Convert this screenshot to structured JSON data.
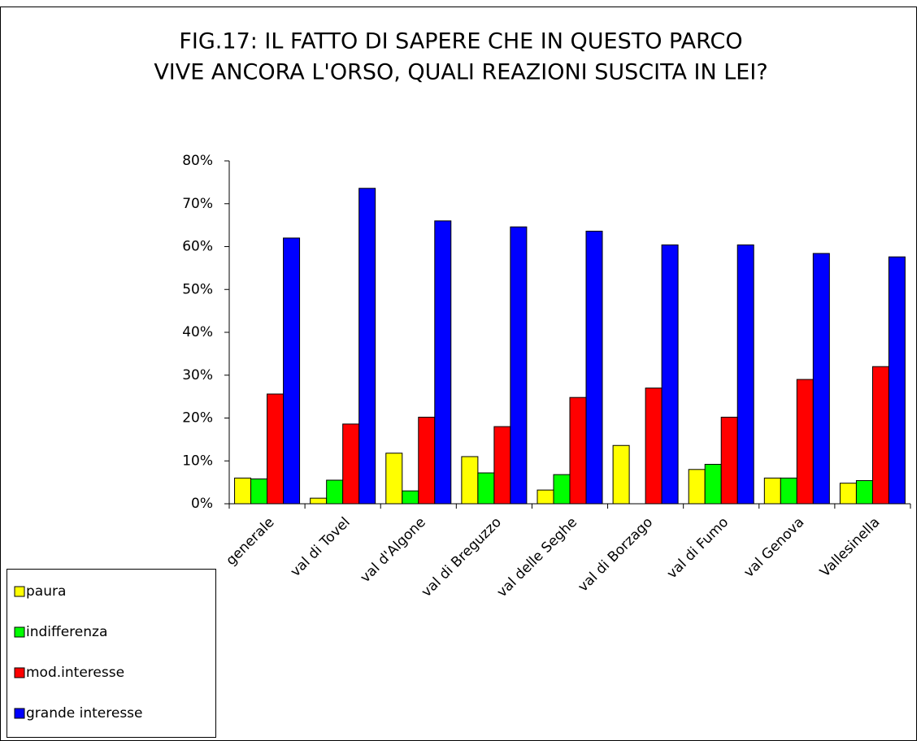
{
  "chart_data": {
    "type": "bar",
    "title": [
      "FIG.17: IL FATTO DI SAPERE CHE IN QUESTO PARCO",
      "VIVE ANCORA L'ORSO, QUALI REAZIONI SUSCITA IN LEI?"
    ],
    "categories": [
      "generale",
      "val di Tovel",
      "val d'Algone",
      "val di Breguzzo",
      "val delle Seghe",
      "val di Borzago",
      "val di Fumo",
      "val Genova",
      "Vallesinella"
    ],
    "series": [
      {
        "name": "paura",
        "color": "#ffff00",
        "values": [
          6,
          1.3,
          11.8,
          11,
          3.2,
          13.6,
          8,
          6,
          4.8
        ]
      },
      {
        "name": "indifferenza",
        "color": "#00ff00",
        "values": [
          5.8,
          5.5,
          3,
          7.2,
          6.8,
          0,
          9.2,
          6,
          5.4
        ]
      },
      {
        "name": "mod.interesse",
        "color": "#ff0000",
        "values": [
          25.6,
          18.6,
          20.2,
          18,
          24.8,
          27,
          20.2,
          29,
          32
        ]
      },
      {
        "name": "grande interesse",
        "color": "#0000ff",
        "values": [
          62,
          73.6,
          66,
          64.6,
          63.6,
          60.4,
          60.4,
          58.4,
          57.6
        ]
      }
    ],
    "ylim": [
      0,
      80
    ],
    "yticks": [
      {
        "value": 0,
        "label": "0%"
      },
      {
        "value": 10,
        "label": "10%"
      },
      {
        "value": 20,
        "label": "20%"
      },
      {
        "value": 30,
        "label": "30%"
      },
      {
        "value": 40,
        "label": "40%"
      },
      {
        "value": 50,
        "label": "50%"
      },
      {
        "value": 60,
        "label": "60%"
      },
      {
        "value": 70,
        "label": "70%"
      },
      {
        "value": 80,
        "label": "80%"
      }
    ],
    "legend": "bottom-left"
  }
}
